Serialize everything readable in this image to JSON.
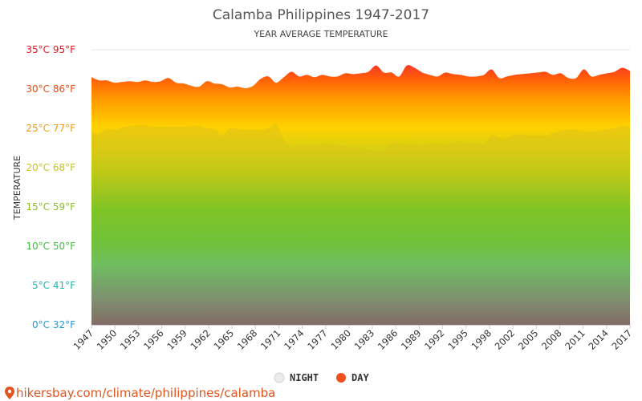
{
  "chart_data": {
    "type": "area",
    "title": "Calamba Philippines 1947-2017",
    "subtitle": "YEAR AVERAGE TEMPERATURE",
    "ylabel": "TEMPERATURE",
    "xlabel": "",
    "ylim": [
      0,
      35
    ],
    "xlim": [
      1947,
      2017
    ],
    "grid": true,
    "legend_position": "bottom",
    "y_ticks": [
      {
        "value": 0,
        "label": "0°C 32°F",
        "color": "#1e9bd7"
      },
      {
        "value": 5,
        "label": "5°C 41°F",
        "color": "#16b8b2"
      },
      {
        "value": 10,
        "label": "10°C 50°F",
        "color": "#3fbf3a"
      },
      {
        "value": 15,
        "label": "15°C 59°F",
        "color": "#86c21d"
      },
      {
        "value": 20,
        "label": "20°C 68°F",
        "color": "#c9c41a"
      },
      {
        "value": 25,
        "label": "25°C 77°F",
        "color": "#f29a0c"
      },
      {
        "value": 30,
        "label": "30°C 86°F",
        "color": "#ef4a0f"
      },
      {
        "value": 35,
        "label": "35°C 95°F",
        "color": "#e8141c"
      }
    ],
    "x_tick_labels": [
      "1947",
      "1950",
      "1953",
      "1956",
      "1959",
      "1962",
      "1965",
      "1968",
      "1971",
      "1974",
      "1977",
      "1980",
      "1983",
      "1986",
      "1989",
      "1992",
      "1995",
      "1998",
      "2002",
      "2005",
      "2008",
      "2011",
      "2014",
      "2017"
    ],
    "x": [
      1947,
      1948,
      1949,
      1950,
      1951,
      1952,
      1953,
      1954,
      1955,
      1956,
      1957,
      1958,
      1959,
      1960,
      1961,
      1962,
      1963,
      1964,
      1965,
      1966,
      1967,
      1968,
      1969,
      1970,
      1971,
      1972,
      1973,
      1974,
      1975,
      1976,
      1977,
      1978,
      1979,
      1980,
      1981,
      1982,
      1983,
      1984,
      1985,
      1986,
      1987,
      1988,
      1989,
      1990,
      1991,
      1992,
      1993,
      1994,
      1995,
      1996,
      1997,
      1998,
      1999,
      2000,
      2001,
      2002,
      2003,
      2004,
      2005,
      2006,
      2007,
      2008,
      2009,
      2010,
      2011,
      2012,
      2013,
      2014,
      2015,
      2016,
      2017
    ],
    "series": [
      {
        "name": "DAY",
        "color": "#f24e1e",
        "values": [
          31.5,
          31.1,
          31.1,
          30.8,
          30.9,
          31.0,
          30.9,
          31.1,
          30.9,
          31.0,
          31.4,
          30.8,
          30.7,
          30.4,
          30.3,
          31.0,
          30.7,
          30.6,
          30.2,
          30.3,
          30.1,
          30.4,
          31.3,
          31.6,
          30.8,
          31.5,
          32.2,
          31.6,
          31.8,
          31.5,
          31.8,
          31.6,
          31.6,
          32.0,
          31.9,
          32.0,
          32.2,
          33.0,
          32.1,
          32.1,
          31.6,
          33.0,
          32.7,
          32.1,
          31.8,
          31.6,
          32.1,
          31.9,
          31.8,
          31.6,
          31.6,
          31.8,
          32.5,
          31.4,
          31.6,
          31.8,
          31.9,
          32.0,
          32.1,
          32.2,
          31.8,
          32.0,
          31.4,
          31.4,
          32.5,
          31.6,
          31.8,
          32.0,
          32.2,
          32.7,
          32.3
        ]
      },
      {
        "name": "NIGHT",
        "color": "#d9d9d9",
        "values": [
          24.5,
          24.3,
          24.9,
          24.8,
          25.1,
          25.3,
          25.4,
          25.4,
          25.2,
          25.2,
          25.2,
          25.2,
          25.2,
          25.3,
          25.3,
          25.0,
          24.9,
          24.1,
          25.0,
          24.9,
          24.8,
          24.8,
          24.8,
          25.0,
          25.6,
          23.6,
          22.6,
          22.9,
          23.0,
          22.9,
          23.1,
          23.0,
          23.0,
          22.7,
          22.6,
          22.5,
          22.3,
          22.3,
          22.3,
          23.0,
          23.2,
          23.0,
          23.0,
          23.0,
          23.1,
          23.2,
          23.0,
          23.2,
          23.3,
          23.2,
          23.2,
          23.0,
          24.1,
          23.8,
          23.7,
          24.2,
          24.2,
          24.1,
          24.1,
          24.1,
          24.4,
          24.7,
          24.8,
          24.8,
          24.6,
          24.6,
          24.7,
          24.9,
          25.0,
          25.3,
          25.2
        ]
      }
    ]
  },
  "legend": {
    "items": [
      {
        "label": "NIGHT",
        "color": "#d9d9d9"
      },
      {
        "label": "DAY",
        "color": "#f24e1e"
      }
    ]
  },
  "source": {
    "text": "hikersbay.com/climate/philippines/calamba",
    "icon": "map-pin-icon",
    "color": "#e0541e"
  }
}
